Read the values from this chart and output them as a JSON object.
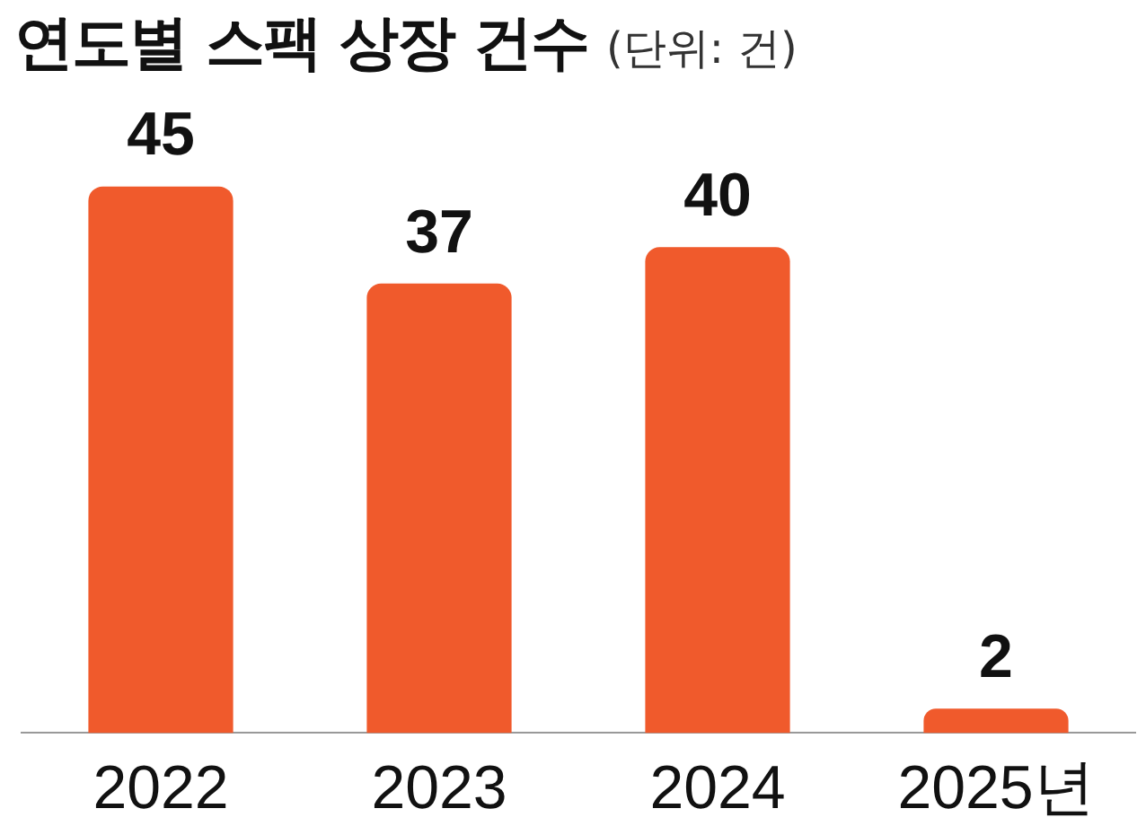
{
  "chart_data": {
    "type": "bar",
    "title": "연도별 스팩 상장 건수",
    "subtitle": "(단위: 건)",
    "categories": [
      "2022",
      "2023",
      "2024",
      "2025년"
    ],
    "values": [
      45,
      37,
      40,
      2
    ],
    "color": "#f05a2c",
    "data_labels": true,
    "grid": false,
    "legend": false
  }
}
